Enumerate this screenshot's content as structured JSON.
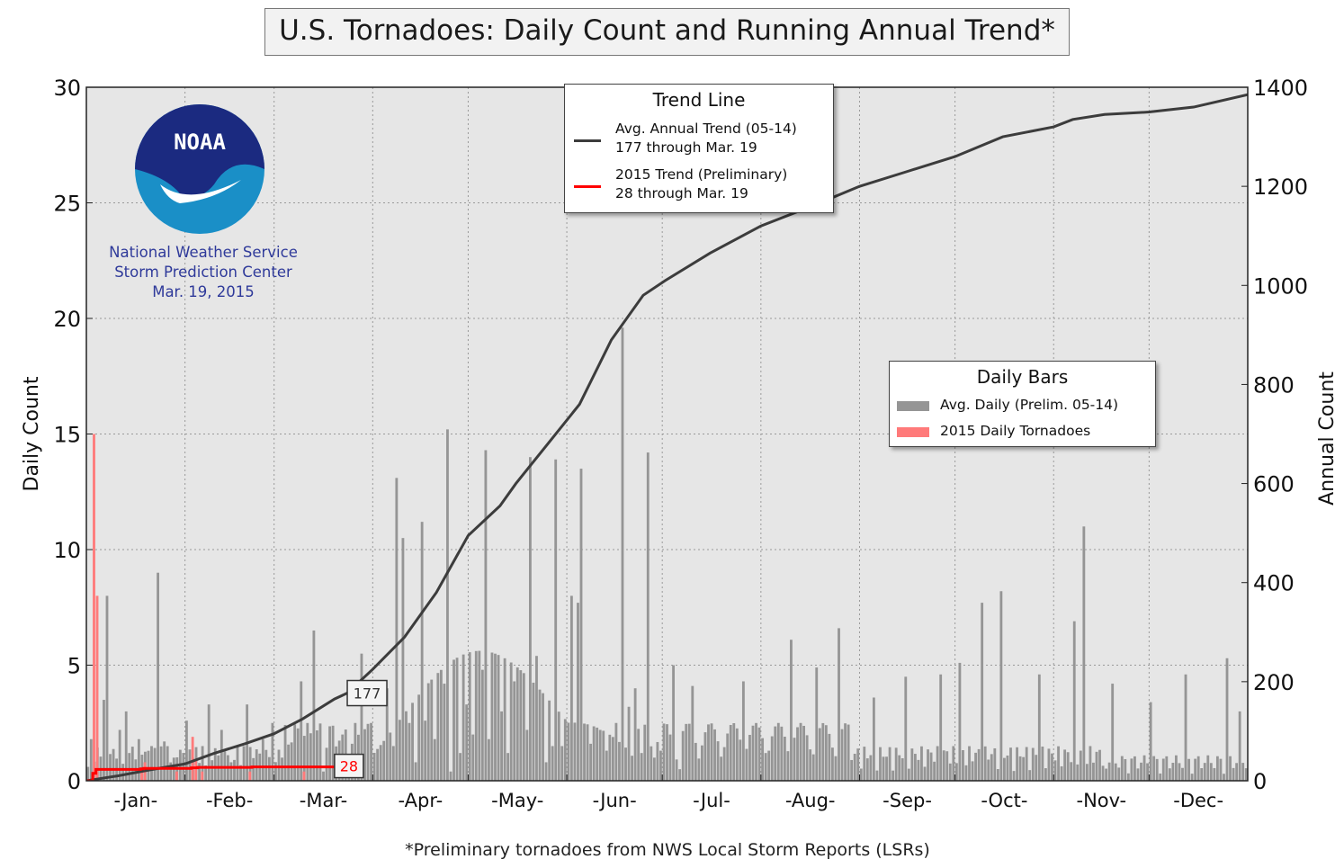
{
  "title": "U.S. Tornadoes: Daily Count and Running Annual Trend*",
  "footnote": "*Preliminary tornadoes from NWS Local Storm Reports (LSRs)",
  "agency": {
    "logo_text": "NOAA",
    "line1": "National Weather Service",
    "line2": "Storm Prediction Center",
    "line3": "Mar. 19, 2015"
  },
  "colors": {
    "plot_bg": "#e6e6e6",
    "avg_bar": "#959595",
    "bar_2015": "#ff7a7a",
    "trend_avg": "#3c3c3c",
    "trend_2015": "#ff0000",
    "logo_blue": "#1b2a80",
    "logo_teal": "#1a8fc7"
  },
  "legend_trend": {
    "title": "Trend Line",
    "avg_line1": "Avg. Annual Trend (05-14)",
    "avg_line2": "177 through Mar. 19",
    "y2015_line1": "2015 Trend (Preliminary)",
    "y2015_line2": "28 through Mar. 19"
  },
  "legend_bars": {
    "title": "Daily Bars",
    "avg_label": "Avg. Daily (Prelim. 05-14)",
    "y2015_label": "2015 Daily Tornadoes"
  },
  "chart_data": {
    "type": "bar",
    "ylabel": "Daily Count",
    "y2label": "Annual Count",
    "ylim": [
      0,
      30
    ],
    "y2lim": [
      0,
      1400
    ],
    "yticks": [
      "0",
      "5",
      "10",
      "15",
      "20",
      "25",
      "30"
    ],
    "y2ticks": [
      "0",
      "200",
      "400",
      "600",
      "800",
      "1000",
      "1200",
      "1400"
    ],
    "xlim_day": [
      0,
      365
    ],
    "month_labels": [
      "-Jan-",
      "-Feb-",
      "-Mar-",
      "-Apr-",
      "-May-",
      "-Jun-",
      "-Jul-",
      "-Aug-",
      "-Sep-",
      "-Oct-",
      "-Nov-",
      "-Dec-"
    ],
    "grid": true,
    "avg_daily_peaks": [
      {
        "day": 1,
        "value": 1.8
      },
      {
        "day": 5,
        "value": 3.5
      },
      {
        "day": 6,
        "value": 8.0
      },
      {
        "day": 10,
        "value": 2.2
      },
      {
        "day": 12,
        "value": 3.0
      },
      {
        "day": 13,
        "value": 1.2
      },
      {
        "day": 16,
        "value": 1.8
      },
      {
        "day": 20,
        "value": 1.5
      },
      {
        "day": 22,
        "value": 9.0
      },
      {
        "day": 24,
        "value": 1.7
      },
      {
        "day": 27,
        "value": 1.0
      },
      {
        "day": 31,
        "value": 2.6
      },
      {
        "day": 36,
        "value": 1.5
      },
      {
        "day": 38,
        "value": 3.3
      },
      {
        "day": 42,
        "value": 2.2
      },
      {
        "day": 45,
        "value": 0.8
      },
      {
        "day": 50,
        "value": 3.3
      },
      {
        "day": 55,
        "value": 1.8
      },
      {
        "day": 58,
        "value": 2.5
      },
      {
        "day": 61,
        "value": 1.0
      },
      {
        "day": 67,
        "value": 4.3
      },
      {
        "day": 71,
        "value": 6.5
      },
      {
        "day": 74,
        "value": 0.4
      },
      {
        "day": 80,
        "value": 2.0
      },
      {
        "day": 83,
        "value": 1.6
      },
      {
        "day": 86,
        "value": 5.5
      },
      {
        "day": 89,
        "value": 2.5
      },
      {
        "day": 94,
        "value": 4.0
      },
      {
        "day": 96,
        "value": 1.5
      },
      {
        "day": 97,
        "value": 13.1
      },
      {
        "day": 101,
        "value": 2.5
      },
      {
        "day": 103,
        "value": 0.8
      },
      {
        "day": 106,
        "value": 2.6
      },
      {
        "day": 109,
        "value": 1.8
      },
      {
        "day": 112,
        "value": 4.2
      },
      {
        "day": 114,
        "value": 0.4
      },
      {
        "day": 117,
        "value": 1.2
      },
      {
        "day": 119,
        "value": 3.3
      },
      {
        "day": 121,
        "value": 2.0
      },
      {
        "day": 124,
        "value": 4.8
      },
      {
        "day": 126,
        "value": 1.8
      },
      {
        "day": 130,
        "value": 3.0
      },
      {
        "day": 132,
        "value": 1.2
      },
      {
        "day": 134,
        "value": 4.3
      },
      {
        "day": 138,
        "value": 2.2
      },
      {
        "day": 141,
        "value": 5.4
      },
      {
        "day": 144,
        "value": 0.8
      },
      {
        "day": 146,
        "value": 1.5
      },
      {
        "day": 149,
        "value": 1.5
      },
      {
        "day": 152,
        "value": 8.0
      },
      {
        "day": 154,
        "value": 7.7
      },
      {
        "day": 155,
        "value": 13.5
      },
      {
        "day": 158,
        "value": 1.6
      },
      {
        "day": 161,
        "value": 2.2
      },
      {
        "day": 163,
        "value": 1.3
      },
      {
        "day": 166,
        "value": 2.5
      },
      {
        "day": 170,
        "value": 3.2
      },
      {
        "day": 172,
        "value": 4.0
      },
      {
        "day": 174,
        "value": 1.2
      },
      {
        "day": 176,
        "value": 14.2
      },
      {
        "day": 178,
        "value": 1.0
      },
      {
        "day": 180,
        "value": 1.3
      },
      {
        "day": 183,
        "value": 2.0
      },
      {
        "day": 186,
        "value": 0.5
      }
    ],
    "trend_avg_points": [
      {
        "day": 0,
        "value": 0
      },
      {
        "day": 10,
        "value": 10
      },
      {
        "day": 20,
        "value": 22
      },
      {
        "day": 31,
        "value": 34
      },
      {
        "day": 40,
        "value": 55
      },
      {
        "day": 50,
        "value": 75
      },
      {
        "day": 59,
        "value": 95
      },
      {
        "day": 68,
        "value": 125
      },
      {
        "day": 78,
        "value": 165
      },
      {
        "day": 82,
        "value": 177
      },
      {
        "day": 90,
        "value": 225
      },
      {
        "day": 100,
        "value": 290
      },
      {
        "day": 110,
        "value": 380
      },
      {
        "day": 120,
        "value": 495
      },
      {
        "day": 130,
        "value": 555
      },
      {
        "day": 135,
        "value": 600
      },
      {
        "day": 145,
        "value": 680
      },
      {
        "day": 155,
        "value": 760
      },
      {
        "day": 165,
        "value": 890
      },
      {
        "day": 175,
        "value": 980
      },
      {
        "day": 182,
        "value": 1010
      },
      {
        "day": 196,
        "value": 1065
      },
      {
        "day": 212,
        "value": 1120
      },
      {
        "day": 228,
        "value": 1160
      },
      {
        "day": 243,
        "value": 1200
      },
      {
        "day": 258,
        "value": 1230
      },
      {
        "day": 273,
        "value": 1260
      },
      {
        "day": 288,
        "value": 1300
      },
      {
        "day": 304,
        "value": 1320
      },
      {
        "day": 310,
        "value": 1335
      },
      {
        "day": 320,
        "value": 1345
      },
      {
        "day": 334,
        "value": 1350
      },
      {
        "day": 348,
        "value": 1360
      },
      {
        "day": 365,
        "value": 1385
      }
    ],
    "trend_avg_label": "177",
    "trend_avg_label_day": 82,
    "daily_2015": [
      {
        "day": 2,
        "value": 15.0
      },
      {
        "day": 3,
        "value": 8.0
      },
      {
        "day": 17,
        "value": 0.5
      },
      {
        "day": 18,
        "value": 0.8
      },
      {
        "day": 28,
        "value": 0.4
      },
      {
        "day": 33,
        "value": 1.9
      },
      {
        "day": 34,
        "value": 0.9
      },
      {
        "day": 36,
        "value": 0.4
      },
      {
        "day": 51,
        "value": 0.4
      },
      {
        "day": 68,
        "value": 0.4
      }
    ],
    "trend_2015_points": [
      {
        "day": 0,
        "value": 0
      },
      {
        "day": 1,
        "value": 0
      },
      {
        "day": 2,
        "value": 15
      },
      {
        "day": 3,
        "value": 23
      },
      {
        "day": 16,
        "value": 23
      },
      {
        "day": 17,
        "value": 24
      },
      {
        "day": 18,
        "value": 25
      },
      {
        "day": 33,
        "value": 26
      },
      {
        "day": 35,
        "value": 27
      },
      {
        "day": 51,
        "value": 27
      },
      {
        "day": 52,
        "value": 28
      },
      {
        "day": 78,
        "value": 28
      }
    ],
    "trend_2015_label": "28",
    "trend_2015_label_day": 78
  }
}
